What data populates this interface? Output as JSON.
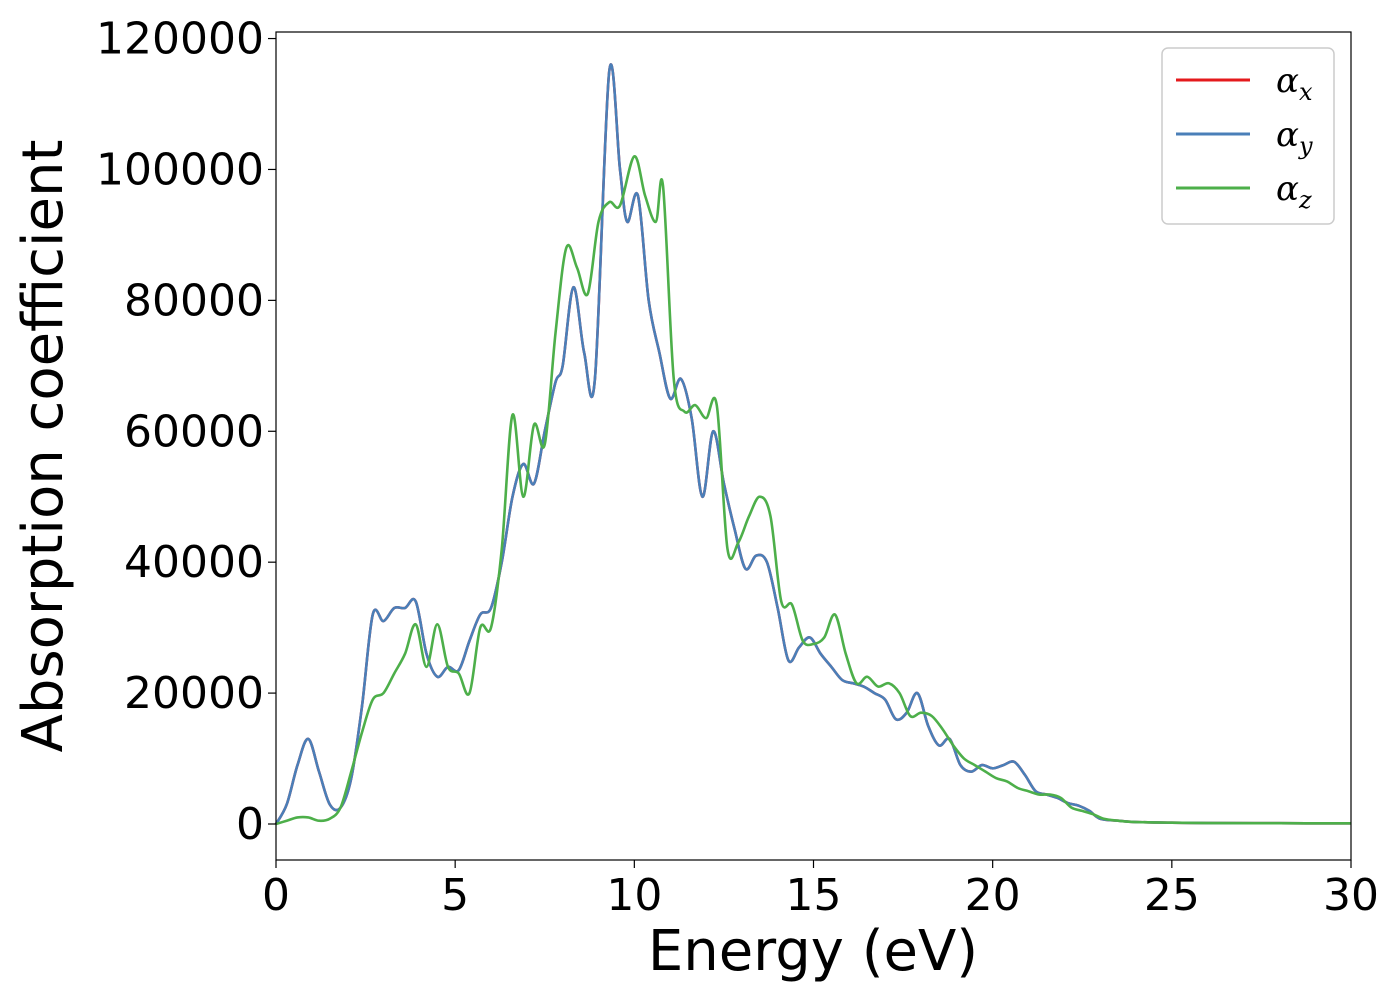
{
  "chart_data": {
    "type": "line",
    "title": "",
    "xlabel": "Energy (eV)",
    "ylabel": "Absorption coefficient",
    "xlim": [
      0,
      30
    ],
    "ylim": [
      -5500,
      121000
    ],
    "xticks": [
      0,
      5,
      10,
      15,
      20,
      25,
      30
    ],
    "yticks": [
      0,
      20000,
      40000,
      60000,
      80000,
      100000,
      120000
    ],
    "xtick_labels": [
      "0",
      "5",
      "10",
      "15",
      "20",
      "25",
      "30"
    ],
    "ytick_labels": [
      "0",
      "20000",
      "40000",
      "60000",
      "80000",
      "100000",
      "120000"
    ],
    "grid": false,
    "legend_position": "top-right",
    "series": [
      {
        "name": "α",
        "subscript": "x",
        "color": "#e41a1c",
        "x": [
          0,
          0.3,
          0.6,
          0.9,
          1.2,
          1.5,
          1.8,
          2.1,
          2.4,
          2.7,
          3.0,
          3.3,
          3.6,
          3.9,
          4.2,
          4.5,
          4.8,
          5.1,
          5.4,
          5.7,
          6.0,
          6.3,
          6.6,
          6.9,
          7.2,
          7.5,
          7.8,
          8.0,
          8.3,
          8.6,
          8.9,
          9.3,
          9.6,
          9.8,
          10.1,
          10.4,
          10.7,
          11.0,
          11.3,
          11.6,
          11.9,
          12.2,
          12.5,
          12.8,
          13.1,
          13.4,
          13.7,
          14.0,
          14.3,
          14.6,
          14.9,
          15.2,
          15.5,
          15.8,
          16.1,
          16.4,
          16.7,
          17.0,
          17.3,
          17.6,
          17.9,
          18.2,
          18.5,
          18.8,
          19.1,
          19.4,
          19.7,
          20.0,
          20.3,
          20.6,
          20.9,
          21.2,
          21.5,
          21.8,
          22.1,
          22.4,
          22.7,
          23.0,
          23.5,
          24.0,
          25.0,
          26.0,
          28.0,
          30.0
        ],
        "y": [
          0,
          3000,
          9000,
          13000,
          8000,
          3000,
          2500,
          7000,
          18000,
          32000,
          31000,
          33000,
          33000,
          34000,
          26000,
          22500,
          24000,
          23500,
          28000,
          32000,
          33000,
          40000,
          50000,
          55000,
          52000,
          60000,
          67500,
          70000,
          82000,
          72000,
          68000,
          115000,
          100000,
          92000,
          96000,
          80000,
          72000,
          65000,
          68000,
          62000,
          50000,
          60000,
          52000,
          45000,
          39000,
          41000,
          40000,
          33000,
          25000,
          27000,
          28500,
          26000,
          24000,
          22000,
          21500,
          21000,
          20000,
          19000,
          16000,
          17000,
          20000,
          15000,
          12000,
          13000,
          9000,
          8000,
          9000,
          8500,
          9000,
          9500,
          7500,
          5000,
          4500,
          4000,
          3200,
          2800,
          2000,
          800,
          500,
          300,
          200,
          150,
          120,
          100
        ]
      },
      {
        "name": "α",
        "subscript": "y",
        "color": "#4a7fb8",
        "x": [
          0,
          0.3,
          0.6,
          0.9,
          1.2,
          1.5,
          1.8,
          2.1,
          2.4,
          2.7,
          3.0,
          3.3,
          3.6,
          3.9,
          4.2,
          4.5,
          4.8,
          5.1,
          5.4,
          5.7,
          6.0,
          6.3,
          6.6,
          6.9,
          7.2,
          7.5,
          7.8,
          8.0,
          8.3,
          8.6,
          8.9,
          9.3,
          9.6,
          9.8,
          10.1,
          10.4,
          10.7,
          11.0,
          11.3,
          11.6,
          11.9,
          12.2,
          12.5,
          12.8,
          13.1,
          13.4,
          13.7,
          14.0,
          14.3,
          14.6,
          14.9,
          15.2,
          15.5,
          15.8,
          16.1,
          16.4,
          16.7,
          17.0,
          17.3,
          17.6,
          17.9,
          18.2,
          18.5,
          18.8,
          19.1,
          19.4,
          19.7,
          20.0,
          20.3,
          20.6,
          20.9,
          21.2,
          21.5,
          21.8,
          22.1,
          22.4,
          22.7,
          23.0,
          23.5,
          24.0,
          25.0,
          26.0,
          28.0,
          30.0
        ],
        "y": [
          0,
          3000,
          9000,
          13000,
          8000,
          3000,
          2500,
          7000,
          18000,
          32000,
          31000,
          33000,
          33000,
          34000,
          26000,
          22500,
          24000,
          23500,
          28000,
          32000,
          33000,
          40000,
          50000,
          55000,
          52000,
          60000,
          67500,
          70000,
          82000,
          72000,
          68000,
          115000,
          100000,
          92000,
          96000,
          80000,
          72000,
          65000,
          68000,
          62000,
          50000,
          60000,
          52000,
          45000,
          39000,
          41000,
          40000,
          33000,
          25000,
          27000,
          28500,
          26000,
          24000,
          22000,
          21500,
          21000,
          20000,
          19000,
          16000,
          17000,
          20000,
          15000,
          12000,
          13000,
          9000,
          8000,
          9000,
          8500,
          9000,
          9500,
          7500,
          5000,
          4500,
          4000,
          3200,
          2800,
          2000,
          800,
          500,
          300,
          200,
          150,
          120,
          100
        ]
      },
      {
        "name": "α",
        "subscript": "z",
        "color": "#4daf4a",
        "x": [
          0,
          0.3,
          0.6,
          0.9,
          1.2,
          1.5,
          1.8,
          2.1,
          2.4,
          2.7,
          3.0,
          3.3,
          3.6,
          3.9,
          4.2,
          4.5,
          4.8,
          5.1,
          5.4,
          5.7,
          6.0,
          6.3,
          6.6,
          6.9,
          7.2,
          7.5,
          7.8,
          8.1,
          8.4,
          8.7,
          9.0,
          9.3,
          9.6,
          10.0,
          10.3,
          10.6,
          10.8,
          11.1,
          11.4,
          11.7,
          12.0,
          12.3,
          12.6,
          12.9,
          13.2,
          13.5,
          13.8,
          14.1,
          14.4,
          14.7,
          15.0,
          15.3,
          15.6,
          15.9,
          16.2,
          16.5,
          16.8,
          17.1,
          17.4,
          17.7,
          18.0,
          18.3,
          18.6,
          18.9,
          19.2,
          19.5,
          19.8,
          20.1,
          20.4,
          20.7,
          21.0,
          21.3,
          21.6,
          21.9,
          22.2,
          22.5,
          22.8,
          23.1,
          23.5,
          24.0,
          25.0,
          26.0,
          28.0,
          30.0
        ],
        "y": [
          0,
          500,
          1000,
          1000,
          500,
          800,
          2500,
          8000,
          14000,
          19000,
          20000,
          23000,
          26000,
          30500,
          24000,
          30500,
          24000,
          23000,
          20000,
          30000,
          30000,
          42000,
          62500,
          50000,
          61000,
          58000,
          75000,
          88000,
          85000,
          81000,
          92000,
          95000,
          94500,
          102000,
          96000,
          92000,
          97500,
          68000,
          63000,
          64000,
          62000,
          64000,
          42000,
          43000,
          47000,
          50000,
          47000,
          34000,
          33500,
          28000,
          27500,
          28500,
          32000,
          26000,
          21500,
          22500,
          21000,
          21500,
          20000,
          16500,
          17000,
          16500,
          14500,
          12000,
          10000,
          9000,
          8000,
          7000,
          6500,
          5500,
          5000,
          4500,
          4500,
          4000,
          2500,
          2000,
          1500,
          800,
          500,
          300,
          200,
          150,
          120,
          100
        ]
      }
    ]
  }
}
